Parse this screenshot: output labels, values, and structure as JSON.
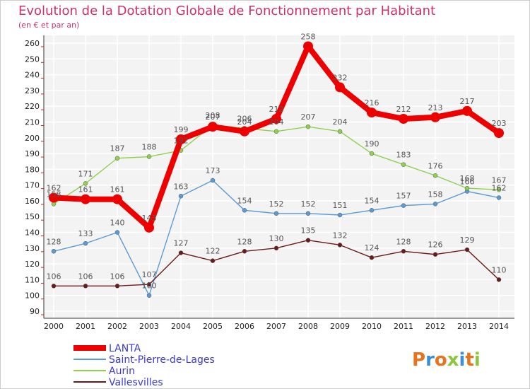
{
  "chart_data": {
    "type": "line",
    "title": "Evolution de la Dotation Globale de Fonctionnement par Habitant",
    "subtitle": "(en € et par an)",
    "xlabel": "",
    "ylabel": "",
    "ylim": [
      90,
      260
    ],
    "yticks": [
      90,
      100,
      110,
      120,
      130,
      140,
      150,
      160,
      170,
      180,
      190,
      200,
      210,
      220,
      230,
      240,
      250,
      260
    ],
    "categories": [
      "2000",
      "2001",
      "2002",
      "2003",
      "2004",
      "2005",
      "2006",
      "2007",
      "2008",
      "2009",
      "2010",
      "2011",
      "2012",
      "2013",
      "2014"
    ],
    "grid": true,
    "legend_position": "bottom-left",
    "series": [
      {
        "name": "LANTA",
        "color": "#ee0000",
        "values": [
          162,
          161,
          161,
          143,
          199,
          207,
          204,
          212,
          258,
          232,
          216,
          212,
          213,
          217,
          203
        ]
      },
      {
        "name": "Saint-Pierre-de-Lages",
        "color": "#5b9bd5",
        "values": [
          128,
          133,
          140,
          100,
          163,
          173,
          154,
          152,
          152,
          151,
          154,
          157,
          158,
          166,
          162
        ]
      },
      {
        "name": "Aurin",
        "color": "#8fd14f",
        "values": [
          158,
          171,
          187,
          188,
          192,
          208,
          206,
          204,
          207,
          204,
          190,
          183,
          176,
          168,
          167
        ]
      },
      {
        "name": "Vallesvilles",
        "color": "#6b1a1a",
        "values": [
          106,
          106,
          106,
          107,
          127,
          122,
          128,
          130,
          135,
          132,
          124,
          128,
          126,
          129,
          110
        ]
      }
    ]
  },
  "branding": {
    "logo_text": "Proxiti",
    "logo_colors": [
      "#e8731e",
      "#3a8fd8",
      "#e8731e",
      "#8cc63f",
      "#3a8fd8",
      "#e8731e",
      "#8cc63f"
    ]
  }
}
